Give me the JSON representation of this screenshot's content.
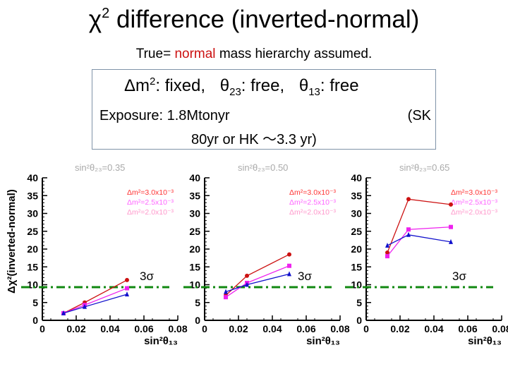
{
  "header": {
    "title_symbol": "χ",
    "title_exp": "2",
    "title_text": "difference (inverted-normal)",
    "subtitle_pre": "True=",
    "subtitle_highlight": "normal",
    "subtitle_post": "mass hierarchy assumed.",
    "highlight_color": "#cc1111"
  },
  "info": {
    "dm2_symbol": "Δm",
    "dm2_exp": "2",
    "dm2_text": ": fixed,",
    "t23_symbol": "θ",
    "t23_sub": "23",
    "t23_text": ": free,",
    "t13_symbol": "θ",
    "t13_sub": "13",
    "t13_text": ": free",
    "exposure": "Exposure: 1.8Mtonyr",
    "sk_label": "(SK",
    "years": "80yr or HK ～3.3 yr)"
  },
  "colors": {
    "series": [
      "#cc1111",
      "#ee22ee",
      "#1111cc"
    ],
    "sigma_line": "#118811",
    "legend_text": [
      "#ff3333",
      "#ff66ff",
      "#ff99cc"
    ],
    "panel_title": "#aaaaaa"
  },
  "chart_data": [
    {
      "type": "line",
      "title": "sin²θ₂₃=0.35",
      "xlabel": "sin²θ₁₃",
      "ylabel": "Δχ²(inverted-normal)",
      "xlim": [
        0,
        0.08
      ],
      "ylim": [
        0,
        40
      ],
      "x_ticks": [
        "0",
        "0.02",
        "0.04",
        "0.06",
        "0.08"
      ],
      "y_ticks": [
        "0",
        "5",
        "10",
        "15",
        "20",
        "25",
        "30",
        "35",
        "40"
      ],
      "sigma_level": 9.3,
      "sigma_label": "3σ",
      "legend": [
        "Δm²=3.0x10⁻³",
        "Δm²=2.5x10⁻³",
        "Δm²=2.0x10⁻³"
      ],
      "series": [
        {
          "name": "Δm²=3.0x10⁻³",
          "marker": "circle",
          "x": [
            0.0125,
            0.025,
            0.05
          ],
          "values": [
            2.0,
            5.0,
            11.3
          ]
        },
        {
          "name": "Δm²=2.5x10⁻³",
          "marker": "square",
          "x": [
            0.0125,
            0.025,
            0.05
          ],
          "values": [
            2.0,
            4.3,
            9.0
          ]
        },
        {
          "name": "Δm²=2.0x10⁻³",
          "marker": "triangle",
          "x": [
            0.0125,
            0.025,
            0.05
          ],
          "values": [
            2.0,
            3.8,
            7.3
          ]
        }
      ]
    },
    {
      "type": "line",
      "title": "sin²θ₂₃=0.50",
      "xlabel": "sin²θ₁₃",
      "ylabel": "",
      "xlim": [
        0,
        0.08
      ],
      "ylim": [
        0,
        40
      ],
      "x_ticks": [
        "0",
        "0.02",
        "0.04",
        "0.06",
        "0.08"
      ],
      "y_ticks": [
        "0",
        "5",
        "10",
        "15",
        "20",
        "25",
        "30",
        "35",
        "40"
      ],
      "sigma_level": 9.3,
      "sigma_label": "3σ",
      "legend": [
        "Δm²=3.0x10⁻³",
        "Δm²=2.5x10⁻³",
        "Δm²=2.0x10⁻³"
      ],
      "series": [
        {
          "name": "Δm²=3.0x10⁻³",
          "marker": "circle",
          "x": [
            0.0125,
            0.025,
            0.05
          ],
          "values": [
            7.0,
            12.5,
            18.5
          ]
        },
        {
          "name": "Δm²=2.5x10⁻³",
          "marker": "square",
          "x": [
            0.0125,
            0.025,
            0.05
          ],
          "values": [
            6.5,
            10.5,
            15.3
          ]
        },
        {
          "name": "Δm²=2.0x10⁻³",
          "marker": "triangle",
          "x": [
            0.0125,
            0.025,
            0.05
          ],
          "values": [
            8.0,
            10.0,
            13.0
          ]
        }
      ]
    },
    {
      "type": "line",
      "title": "sin²θ₂₃=0.65",
      "xlabel": "sin²θ₁₃",
      "ylabel": "",
      "xlim": [
        0,
        0.08
      ],
      "ylim": [
        0,
        40
      ],
      "x_ticks": [
        "0",
        "0.02",
        "0.04",
        "0.06",
        "0.08"
      ],
      "y_ticks": [
        "0",
        "5",
        "10",
        "15",
        "20",
        "25",
        "30",
        "35",
        "40"
      ],
      "sigma_level": 9.3,
      "sigma_label": "3σ",
      "legend": [
        "Δm²=3.0x10⁻³",
        "Δm²=2.5x10⁻³",
        "Δm²=2.0x10⁻³"
      ],
      "series": [
        {
          "name": "Δm²=3.0x10⁻³",
          "marker": "circle",
          "x": [
            0.0125,
            0.025,
            0.05
          ],
          "values": [
            19.0,
            34.0,
            32.5
          ]
        },
        {
          "name": "Δm²=2.5x10⁻³",
          "marker": "square",
          "x": [
            0.0125,
            0.025,
            0.05
          ],
          "values": [
            18.0,
            25.5,
            26.2
          ]
        },
        {
          "name": "Δm²=2.0x10⁻³",
          "marker": "triangle",
          "x": [
            0.0125,
            0.025,
            0.05
          ],
          "values": [
            21.0,
            24.0,
            22.0
          ]
        }
      ]
    }
  ]
}
